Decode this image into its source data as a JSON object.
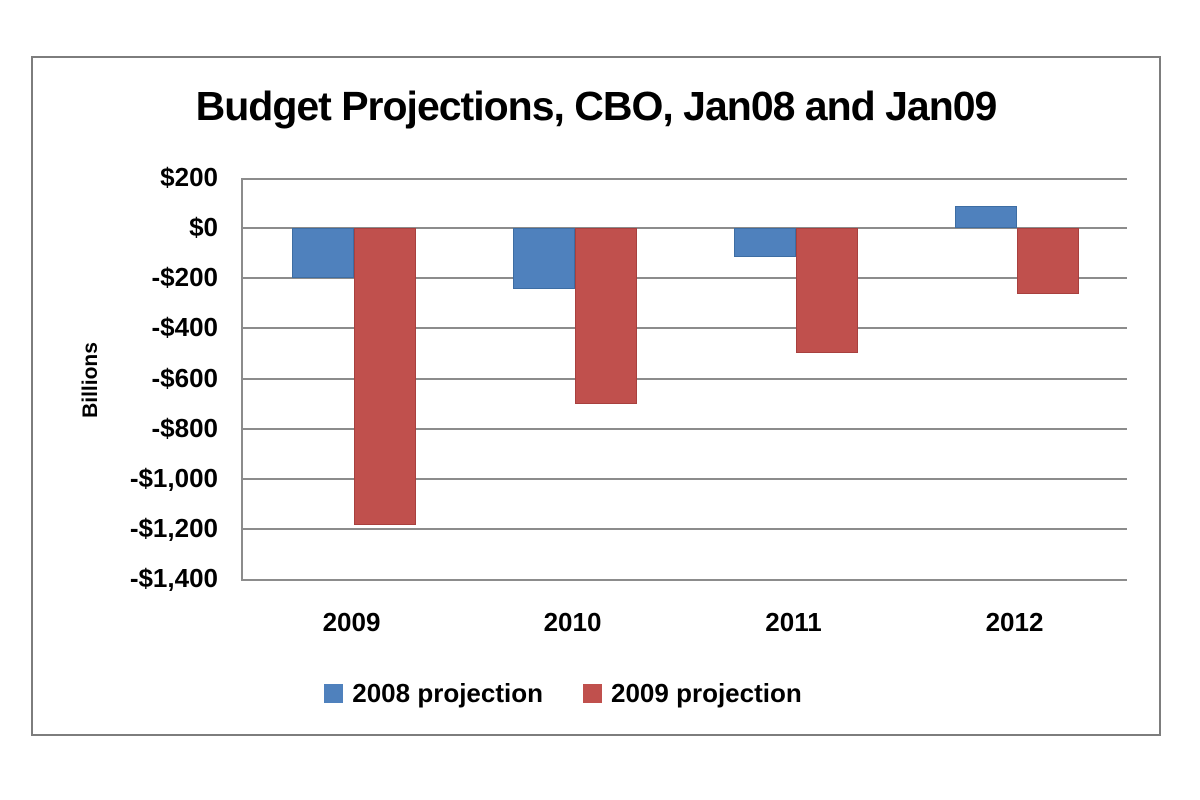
{
  "chart_data": {
    "type": "bar",
    "title": "Budget Projections, CBO, Jan08 and Jan09",
    "ylabel": "Billions",
    "categories": [
      "2009",
      "2010",
      "2011",
      "2012"
    ],
    "series": [
      {
        "name": "2008 projection",
        "color": "#4F81BD",
        "border_color": "#3d6da3",
        "values": [
          -198,
          -241,
          -117,
          87
        ]
      },
      {
        "name": "2009 projection",
        "color": "#C0504D",
        "border_color": "#a8403e",
        "values": [
          -1186,
          -703,
          -498,
          -264
        ]
      }
    ],
    "ylim": [
      -1400,
      200
    ],
    "ytick_step": 200,
    "ytick_labels": [
      "$200",
      "$0",
      "-$200",
      "-$400",
      "-$600",
      "-$800",
      "-$1,000",
      "-$1,200",
      "-$1,400"
    ],
    "grid": true,
    "legend_position": "bottom",
    "colors": {
      "grid": "#8c8c8c",
      "frame_border": "#7d7d7d",
      "text": "#000000"
    }
  }
}
